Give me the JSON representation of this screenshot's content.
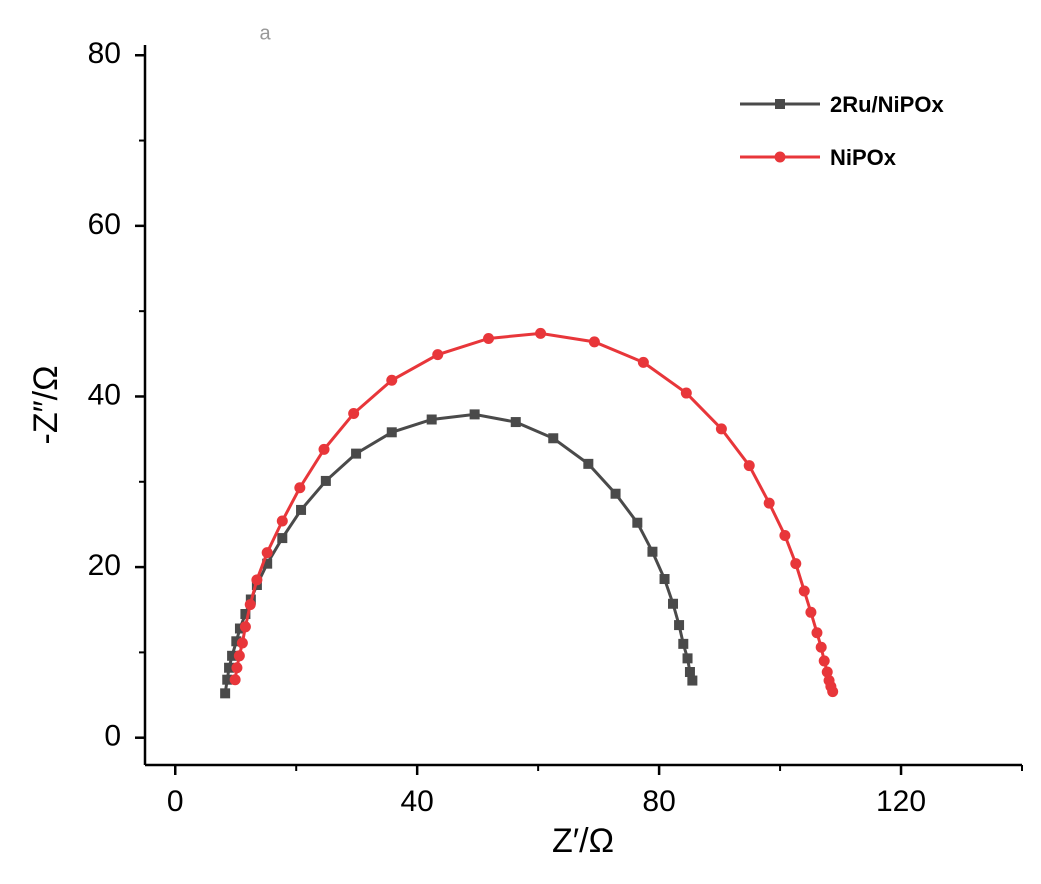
{
  "chart_data": {
    "type": "line",
    "annotation": "a",
    "xlabel": "Z′/Ω",
    "ylabel": "-Z″/Ω",
    "xlim": [
      -5,
      140
    ],
    "ylim": [
      -3.2,
      81.2
    ],
    "xticks": [
      0,
      40,
      80,
      120
    ],
    "yticks": [
      0,
      20,
      40,
      60,
      80
    ],
    "xminorticks": [
      20,
      60,
      100,
      140
    ],
    "yminorticks": [
      10,
      30,
      50,
      70
    ],
    "legend": "upper right",
    "series": [
      {
        "name": "2Ru/NiPOx",
        "color": "#4a4a4a",
        "marker": "square",
        "x": [
          8.25,
          8.6,
          8.9,
          9.4,
          10.1,
          10.7,
          11.6,
          12.5,
          13.5,
          15.2,
          17.7,
          20.8,
          24.9,
          29.9,
          35.8,
          42.4,
          49.5,
          56.3,
          62.5,
          68.3,
          72.8,
          76.4,
          78.9,
          80.9,
          82.3,
          83.3,
          84.0,
          84.7,
          85.1,
          85.5
        ],
        "values": [
          5.2,
          6.8,
          8.2,
          9.6,
          11.3,
          12.8,
          14.5,
          16.2,
          17.9,
          20.4,
          23.4,
          26.7,
          30.1,
          33.3,
          35.8,
          37.3,
          37.9,
          37.0,
          35.1,
          32.1,
          28.6,
          25.2,
          21.8,
          18.6,
          15.7,
          13.2,
          11.0,
          9.3,
          7.7,
          6.7
        ]
      },
      {
        "name": "NiPOx",
        "color": "#e8363a",
        "marker": "circle",
        "x": [
          9.9,
          10.2,
          10.6,
          11.1,
          11.6,
          12.4,
          13.5,
          15.2,
          17.7,
          20.6,
          24.6,
          29.5,
          35.8,
          43.4,
          51.8,
          60.4,
          69.3,
          77.4,
          84.5,
          90.3,
          94.9,
          98.2,
          100.8,
          102.6,
          104.0,
          105.1,
          106.1,
          106.8,
          107.3,
          107.8,
          108.1,
          108.4,
          108.7
        ],
        "values": [
          6.8,
          8.2,
          9.6,
          11.1,
          13.0,
          15.6,
          18.5,
          21.7,
          25.4,
          29.3,
          33.8,
          38.0,
          41.9,
          44.9,
          46.8,
          47.4,
          46.4,
          44.0,
          40.4,
          36.2,
          31.9,
          27.5,
          23.7,
          20.4,
          17.2,
          14.7,
          12.3,
          10.6,
          9.0,
          7.7,
          6.7,
          6.0,
          5.4
        ]
      }
    ]
  }
}
